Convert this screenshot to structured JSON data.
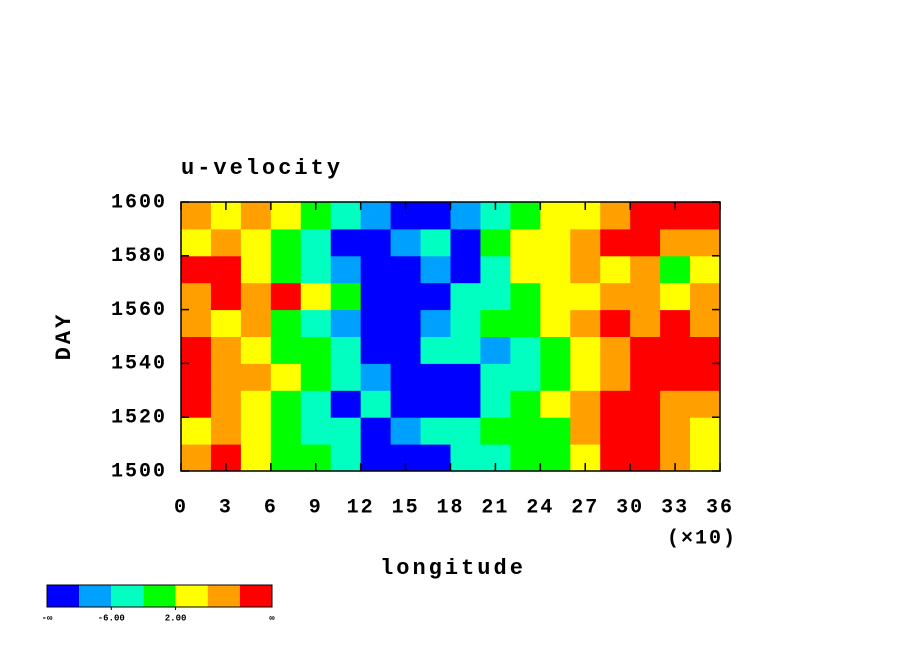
{
  "chart_data": {
    "type": "heatmap",
    "title": "u-velocity",
    "x_label": "longitude",
    "x_multiplier_label": "(×10)",
    "y_label": "DAY",
    "x": [
      1,
      3,
      5,
      7,
      9,
      11,
      13,
      15,
      17,
      19,
      21,
      23,
      25,
      27,
      29,
      31,
      33,
      35
    ],
    "y": [
      1505,
      1515,
      1525,
      1535,
      1545,
      1555,
      1565,
      1575,
      1585,
      1595
    ],
    "values": [
      [
        8,
        12,
        4,
        0,
        0,
        -4,
        -12,
        -12,
        -12,
        -4,
        -4,
        0,
        0,
        4,
        12,
        12,
        8,
        4
      ],
      [
        4,
        8,
        4,
        0,
        -4,
        -4,
        -12,
        -8,
        -4,
        -4,
        0,
        0,
        0,
        8,
        12,
        12,
        8,
        4
      ],
      [
        12,
        8,
        4,
        0,
        -4,
        -12,
        -4,
        -12,
        -12,
        -12,
        -4,
        0,
        4,
        8,
        12,
        12,
        8,
        8
      ],
      [
        12,
        8,
        8,
        4,
        0,
        -4,
        -8,
        -12,
        -12,
        -12,
        -4,
        -4,
        0,
        4,
        8,
        12,
        12,
        12
      ],
      [
        12,
        8,
        4,
        0,
        0,
        -4,
        -12,
        -12,
        -4,
        -4,
        -8,
        -4,
        0,
        4,
        8,
        12,
        12,
        12
      ],
      [
        8,
        4,
        8,
        0,
        -4,
        -8,
        -12,
        -12,
        -8,
        -4,
        0,
        0,
        4,
        8,
        12,
        8,
        12,
        8
      ],
      [
        8,
        12,
        8,
        12,
        4,
        0,
        -12,
        -12,
        -12,
        -4,
        -4,
        0,
        4,
        4,
        8,
        8,
        4,
        8
      ],
      [
        12,
        12,
        4,
        0,
        -4,
        -8,
        -12,
        -12,
        -8,
        -12,
        -4,
        4,
        4,
        8,
        4,
        8,
        0,
        4
      ],
      [
        4,
        8,
        4,
        0,
        -4,
        -12,
        -12,
        -8,
        -4,
        -12,
        0,
        4,
        4,
        8,
        12,
        12,
        8,
        8
      ],
      [
        8,
        4,
        8,
        4,
        0,
        -4,
        -8,
        -12,
        -12,
        -8,
        -4,
        0,
        4,
        4,
        8,
        12,
        12,
        12
      ]
    ],
    "xlim": [
      0,
      36
    ],
    "xticks": [
      0,
      3,
      6,
      9,
      12,
      15,
      18,
      21,
      24,
      27,
      30,
      33,
      36
    ],
    "ylim": [
      1500,
      1600
    ],
    "yticks": [
      1500,
      1520,
      1540,
      1560,
      1580,
      1600
    ],
    "colorbar": {
      "colors": [
        "#0000ff",
        "#00a0ff",
        "#00ffc0",
        "#00ff00",
        "#ffff00",
        "#ffa000",
        "#ff0000"
      ],
      "levels": [
        -10,
        -6,
        -2,
        2,
        6,
        10
      ],
      "ticks": [
        {
          "value": -6,
          "label": "-6.00"
        },
        {
          "value": 2,
          "label": "2.00"
        }
      ],
      "low_label": "-∞",
      "high_label": "∞"
    }
  }
}
